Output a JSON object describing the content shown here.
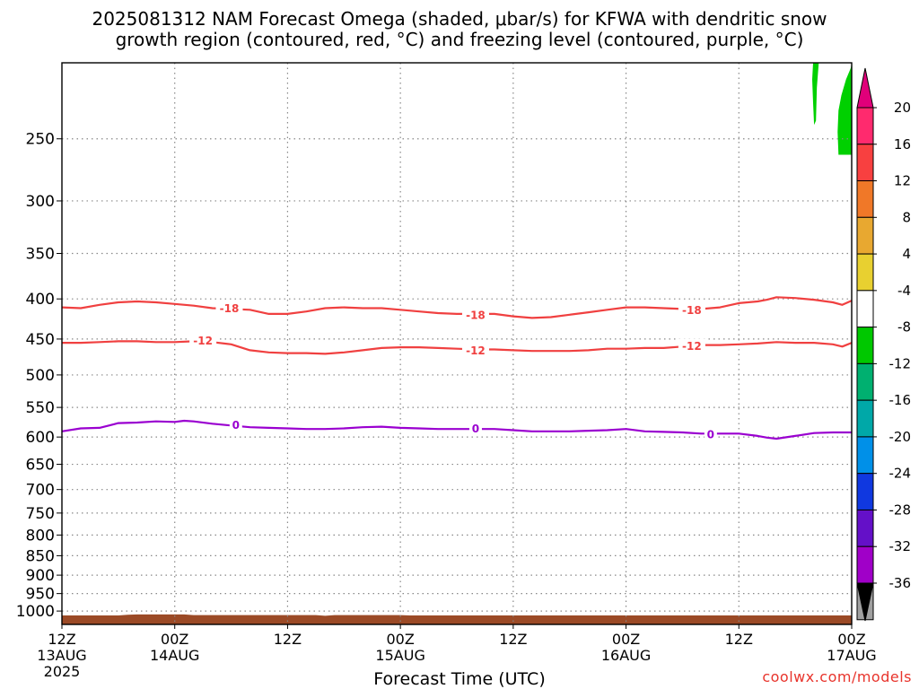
{
  "title": {
    "line1": "2025081312 NAM Forecast Omega (shaded, μbar/s) for KFWA with dendritic snow",
    "line2": "growth region (contoured, red, °C) and freezing level (contoured, purple, °C)"
  },
  "x_axis_label": "Forecast Time (UTC)",
  "credit": "coolwx.com/models",
  "colors": {
    "red_contour": "#f04040",
    "purple_contour": "#9a00d0",
    "terrain": "#9b4a26",
    "omega_green": "#00d000",
    "grid": "#888888"
  },
  "chart_data": {
    "type": "heatmap",
    "x_range_hours": [
      0,
      84
    ],
    "x_ticks": [
      {
        "hour": 0,
        "line1": "12Z",
        "line2": "13AUG",
        "line3": "2025"
      },
      {
        "hour": 12,
        "line1": "00Z",
        "line2": "14AUG",
        "line3": ""
      },
      {
        "hour": 24,
        "line1": "12Z",
        "line2": "",
        "line3": ""
      },
      {
        "hour": 36,
        "line1": "00Z",
        "line2": "15AUG",
        "line3": ""
      },
      {
        "hour": 48,
        "line1": "12Z",
        "line2": "",
        "line3": ""
      },
      {
        "hour": 60,
        "line1": "00Z",
        "line2": "16AUG",
        "line3": ""
      },
      {
        "hour": 72,
        "line1": "12Z",
        "line2": "",
        "line3": ""
      },
      {
        "hour": 84,
        "line1": "00Z",
        "line2": "17AUG",
        "line3": ""
      }
    ],
    "y_axis": "pressure (hPa), log scale, reversed",
    "y_range": [
      200,
      1040
    ],
    "y_ticks": [
      250,
      300,
      350,
      400,
      450,
      500,
      550,
      600,
      650,
      700,
      750,
      800,
      850,
      900,
      950,
      1000
    ],
    "grid": true,
    "colorbar": {
      "labels": [
        "20",
        "16",
        "12",
        "8",
        "4",
        "-4",
        "-8",
        "-12",
        "-16",
        "-20",
        "-24",
        "-28",
        "-32",
        "-36"
      ],
      "colors": [
        "#ff2a6e",
        "#f84040",
        "#f07828",
        "#e8a830",
        "#e8d030",
        "#ffffff",
        "#00c800",
        "#00b070",
        "#00a8a8",
        "#0090e8",
        "#1038e0",
        "#6410c8",
        "#a000c8",
        "#a0a0a0"
      ],
      "top_arrow": "#e0007a",
      "bottom_arrow": "#000000"
    },
    "series": [
      {
        "name": "-18",
        "color": "#f04040",
        "points": [
          [
            0,
            410
          ],
          [
            2,
            411
          ],
          [
            4,
            407
          ],
          [
            6,
            404
          ],
          [
            8,
            403
          ],
          [
            10,
            404
          ],
          [
            12,
            406
          ],
          [
            14,
            408
          ],
          [
            16,
            411
          ],
          [
            18,
            412
          ],
          [
            20,
            413
          ],
          [
            22,
            418
          ],
          [
            24,
            418
          ],
          [
            26,
            415
          ],
          [
            28,
            411
          ],
          [
            30,
            410
          ],
          [
            32,
            411
          ],
          [
            34,
            411
          ],
          [
            36,
            413
          ],
          [
            38,
            415
          ],
          [
            40,
            417
          ],
          [
            42,
            418
          ],
          [
            44,
            418
          ],
          [
            46,
            418
          ],
          [
            48,
            421
          ],
          [
            50,
            423
          ],
          [
            52,
            422
          ],
          [
            54,
            419
          ],
          [
            56,
            416
          ],
          [
            58,
            413
          ],
          [
            60,
            410
          ],
          [
            62,
            410
          ],
          [
            64,
            411
          ],
          [
            66,
            412
          ],
          [
            68,
            412
          ],
          [
            70,
            410
          ],
          [
            72,
            405
          ],
          [
            74,
            403
          ],
          [
            75,
            401
          ],
          [
            76,
            398
          ],
          [
            78,
            399
          ],
          [
            80,
            401
          ],
          [
            82,
            404
          ],
          [
            83,
            407
          ],
          [
            84,
            402
          ]
        ],
        "labels": [
          [
            17.8,
            411
          ],
          [
            44,
            419
          ],
          [
            67,
            413
          ]
        ]
      },
      {
        "name": "-12",
        "color": "#f04040",
        "points": [
          [
            0,
            455
          ],
          [
            2,
            455
          ],
          [
            4,
            454
          ],
          [
            6,
            453
          ],
          [
            8,
            453
          ],
          [
            10,
            454
          ],
          [
            12,
            454
          ],
          [
            14,
            453
          ],
          [
            16,
            454
          ],
          [
            18,
            457
          ],
          [
            20,
            465
          ],
          [
            22,
            468
          ],
          [
            24,
            469
          ],
          [
            26,
            469
          ],
          [
            28,
            470
          ],
          [
            30,
            468
          ],
          [
            32,
            465
          ],
          [
            34,
            462
          ],
          [
            36,
            461
          ],
          [
            38,
            461
          ],
          [
            40,
            462
          ],
          [
            42,
            463
          ],
          [
            44,
            464
          ],
          [
            46,
            464
          ],
          [
            48,
            465
          ],
          [
            50,
            466
          ],
          [
            52,
            466
          ],
          [
            54,
            466
          ],
          [
            56,
            465
          ],
          [
            58,
            463
          ],
          [
            60,
            463
          ],
          [
            62,
            462
          ],
          [
            64,
            462
          ],
          [
            66,
            460
          ],
          [
            68,
            458
          ],
          [
            70,
            458
          ],
          [
            72,
            457
          ],
          [
            74,
            456
          ],
          [
            76,
            454
          ],
          [
            78,
            455
          ],
          [
            80,
            455
          ],
          [
            82,
            457
          ],
          [
            83,
            460
          ],
          [
            84,
            455
          ]
        ],
        "labels": [
          [
            15,
            452
          ],
          [
            44,
            465
          ],
          [
            67,
            459
          ]
        ]
      },
      {
        "name": "0",
        "color": "#9a00d0",
        "points": [
          [
            0,
            590
          ],
          [
            2,
            585
          ],
          [
            4,
            584
          ],
          [
            5,
            580
          ],
          [
            6,
            576
          ],
          [
            8,
            575
          ],
          [
            10,
            573
          ],
          [
            12,
            574
          ],
          [
            13,
            572
          ],
          [
            14,
            573
          ],
          [
            16,
            577
          ],
          [
            18,
            580
          ],
          [
            20,
            583
          ],
          [
            22,
            584
          ],
          [
            24,
            585
          ],
          [
            26,
            586
          ],
          [
            28,
            586
          ],
          [
            30,
            585
          ],
          [
            32,
            583
          ],
          [
            34,
            582
          ],
          [
            36,
            584
          ],
          [
            38,
            585
          ],
          [
            40,
            586
          ],
          [
            42,
            586
          ],
          [
            44,
            586
          ],
          [
            46,
            586
          ],
          [
            48,
            588
          ],
          [
            50,
            590
          ],
          [
            52,
            590
          ],
          [
            54,
            590
          ],
          [
            56,
            589
          ],
          [
            58,
            588
          ],
          [
            60,
            586
          ],
          [
            62,
            590
          ],
          [
            64,
            591
          ],
          [
            66,
            592
          ],
          [
            68,
            594
          ],
          [
            70,
            594
          ],
          [
            72,
            594
          ],
          [
            74,
            598
          ],
          [
            75,
            601
          ],
          [
            76,
            603
          ],
          [
            78,
            598
          ],
          [
            80,
            593
          ],
          [
            82,
            592
          ],
          [
            84,
            592
          ]
        ],
        "labels": [
          [
            18.5,
            579
          ],
          [
            44,
            585
          ],
          [
            69,
            595
          ]
        ]
      }
    ],
    "omega_areas": [
      {
        "value": "-8",
        "color": "#00d000",
        "points": [
          [
            79.9,
            200
          ],
          [
            80.5,
            200
          ],
          [
            80.3,
            215
          ],
          [
            80.2,
            237
          ],
          [
            80.0,
            240
          ],
          [
            79.9,
            225
          ],
          [
            79.8,
            210
          ]
        ]
      },
      {
        "value": "-8",
        "color": "#00d000",
        "points": [
          [
            84,
            200
          ],
          [
            84,
            262
          ],
          [
            82.6,
            262
          ],
          [
            82.5,
            245
          ],
          [
            82.6,
            230
          ],
          [
            82.9,
            220
          ],
          [
            83.4,
            210
          ],
          [
            83.9,
            203
          ]
        ]
      }
    ],
    "terrain": {
      "color": "#9b4a26",
      "top_points": [
        [
          0,
          1013
        ],
        [
          6,
          1013
        ],
        [
          7,
          1011
        ],
        [
          8,
          1010
        ],
        [
          13,
          1010
        ],
        [
          14,
          1012
        ],
        [
          20,
          1012
        ],
        [
          27,
          1012
        ],
        [
          28,
          1014
        ],
        [
          29,
          1012
        ],
        [
          36,
          1012
        ],
        [
          37,
          1013
        ],
        [
          84,
          1013
        ]
      ]
    }
  }
}
